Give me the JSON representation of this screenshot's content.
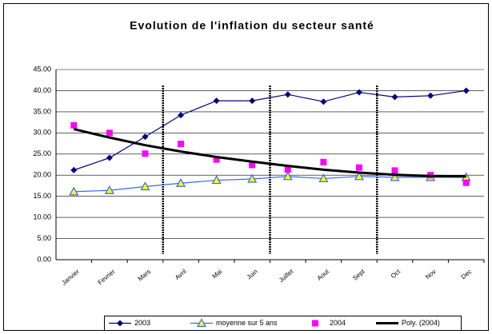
{
  "chart_data": {
    "type": "line",
    "title": "Evolution de l'inflation du secteur santé",
    "categories": [
      "Janvier",
      "Fevrier",
      "Mars",
      "Avril",
      "Mai",
      "Juin",
      "Juillet",
      "Aout",
      "Sept",
      "Oct",
      "Nov",
      "Dec"
    ],
    "series": [
      {
        "name": "2003",
        "color": "#000080",
        "marker": "diamond",
        "line": true,
        "values": [
          21.2,
          24.1,
          29.1,
          34.2,
          37.6,
          37.6,
          39.1,
          37.4,
          39.6,
          38.5,
          38.8,
          40.0
        ]
      },
      {
        "name": "moyenne sur 5 ans",
        "color": "#3366ff",
        "marker": "triangle",
        "line": true,
        "values": [
          16.1,
          16.4,
          17.3,
          18.1,
          18.8,
          19.1,
          19.7,
          19.2,
          19.7,
          19.5,
          19.5,
          19.5
        ]
      },
      {
        "name": "2004",
        "color": "#ff00ff",
        "marker": "square",
        "line": false,
        "values": [
          31.8,
          30.0,
          25.1,
          27.4,
          23.7,
          22.4,
          21.3,
          23.1,
          21.8,
          21.1,
          20.0,
          18.2
        ]
      },
      {
        "name": "Poly. (2004)",
        "color": "#000000",
        "marker": "none",
        "line": true,
        "values": [
          30.9,
          28.9,
          27.1,
          25.6,
          24.3,
          23.2,
          22.2,
          21.3,
          20.6,
          20.1,
          19.8,
          19.7
        ]
      }
    ],
    "ylim": [
      0,
      45
    ],
    "yticks": [
      {
        "value": 0,
        "label": "0.00"
      },
      {
        "value": 5,
        "label": "5.00"
      },
      {
        "value": 10,
        "label": "10.00"
      },
      {
        "value": 15,
        "label": "15.00"
      },
      {
        "value": 20,
        "label": "20.00"
      },
      {
        "value": 25,
        "label": "25.00"
      },
      {
        "value": 30,
        "label": "30.00"
      },
      {
        "value": 35,
        "label": "35.00"
      },
      {
        "value": 40,
        "label": "40.00"
      },
      {
        "value": 45,
        "label": "45.00"
      }
    ],
    "grid": true,
    "legend": "bottom"
  }
}
